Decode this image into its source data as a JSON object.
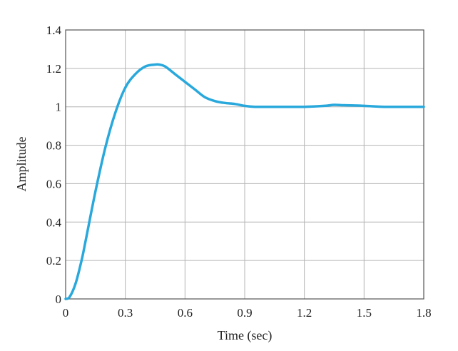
{
  "chart_data": {
    "type": "line",
    "title": "",
    "xlabel": "Time (sec)",
    "ylabel": "Amplitude",
    "xlim": [
      0,
      1.8
    ],
    "ylim": [
      0,
      1.4
    ],
    "x_ticks": [
      "0",
      "0.3",
      "0.6",
      "0.9",
      "1.2",
      "1.5",
      "1.8"
    ],
    "y_ticks": [
      "0",
      "0.2",
      "0.4",
      "0.6",
      "0.8",
      "1",
      "1.2",
      "1.4"
    ],
    "grid": true,
    "line_color": "#29a8dc",
    "series": [
      {
        "x": [
          0,
          0.02,
          0.05,
          0.08,
          0.1,
          0.15,
          0.2,
          0.25,
          0.3,
          0.35,
          0.4,
          0.45,
          0.47,
          0.5,
          0.55,
          0.6,
          0.65,
          0.7,
          0.75,
          0.8,
          0.85,
          0.9,
          0.95,
          1.0,
          1.1,
          1.2,
          1.3,
          1.35,
          1.4,
          1.5,
          1.6,
          1.7,
          1.8
        ],
        "y": [
          0,
          0.01,
          0.08,
          0.2,
          0.3,
          0.56,
          0.79,
          0.97,
          1.1,
          1.17,
          1.21,
          1.22,
          1.22,
          1.21,
          1.17,
          1.13,
          1.09,
          1.05,
          1.03,
          1.02,
          1.015,
          1.005,
          1.0,
          1.0,
          1.0,
          1.0,
          1.005,
          1.01,
          1.008,
          1.005,
          1.0,
          1.0,
          1.0
        ]
      }
    ]
  }
}
